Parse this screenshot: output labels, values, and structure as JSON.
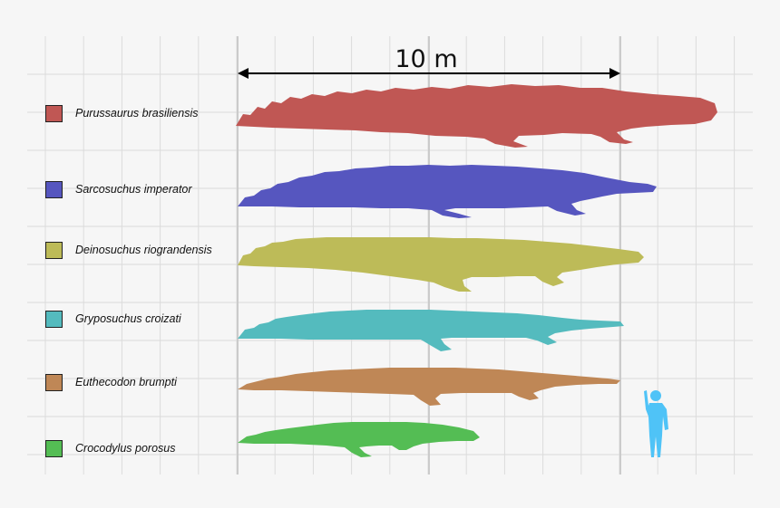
{
  "scale": {
    "label": "10 m"
  },
  "species": [
    {
      "name": "Purussaurus brasiliensis",
      "color": "#c05754"
    },
    {
      "name": "Sarcosuchus imperator",
      "color": "#5656bf"
    },
    {
      "name": "Deinosuchus riograndensis",
      "color": "#bdbb58"
    },
    {
      "name": "Gryposuchus croizati",
      "color": "#54bbbe"
    },
    {
      "name": "Euthecodon brumpti",
      "color": "#bf8756"
    },
    {
      "name": "Crocodylus porosus",
      "color": "#54bd54"
    }
  ],
  "human": {
    "color": "#4fc3f7"
  }
}
